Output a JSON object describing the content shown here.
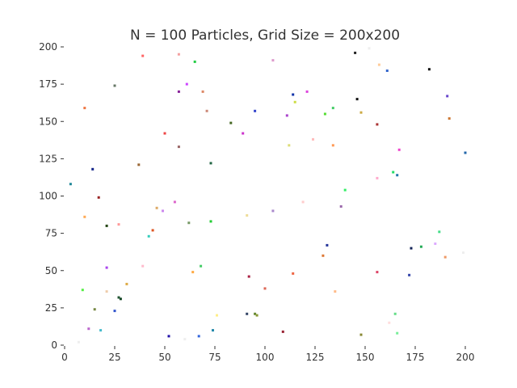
{
  "chart_data": {
    "type": "scatter",
    "title": "N = 100 Particles, Grid Size = 200x200",
    "xlabel": "",
    "ylabel": "",
    "xlim": [
      0,
      200
    ],
    "ylim": [
      0,
      200
    ],
    "xticks": [
      "0",
      "25",
      "50",
      "75",
      "100",
      "125",
      "150",
      "175",
      "200"
    ],
    "yticks": [
      "0",
      "25",
      "50",
      "75",
      "100",
      "125",
      "150",
      "175",
      "200"
    ],
    "grid": false,
    "legend": "none",
    "points": [
      {
        "x": 145,
        "y": 196,
        "color": "#222222"
      },
      {
        "x": 182,
        "y": 185,
        "color": "#111111"
      },
      {
        "x": 57,
        "y": 195,
        "color": "#f4a0a0"
      },
      {
        "x": 39,
        "y": 194,
        "color": "#ff6666"
      },
      {
        "x": 65,
        "y": 190,
        "color": "#22cc44"
      },
      {
        "x": 104,
        "y": 191,
        "color": "#dd99cc"
      },
      {
        "x": 157,
        "y": 188,
        "color": "#ffcc99"
      },
      {
        "x": 161,
        "y": 184,
        "color": "#3366cc"
      },
      {
        "x": 25,
        "y": 174,
        "color": "#667766"
      },
      {
        "x": 61,
        "y": 175,
        "color": "#cc44ff"
      },
      {
        "x": 69,
        "y": 170,
        "color": "#dd8866"
      },
      {
        "x": 57,
        "y": 170,
        "color": "#882299"
      },
      {
        "x": 114,
        "y": 168,
        "color": "#1133aa"
      },
      {
        "x": 121,
        "y": 170,
        "color": "#dd44dd"
      },
      {
        "x": 191,
        "y": 167,
        "color": "#6644cc"
      },
      {
        "x": 146,
        "y": 165,
        "color": "#111111"
      },
      {
        "x": 115,
        "y": 163,
        "color": "#ccdd44"
      },
      {
        "x": 10,
        "y": 159,
        "color": "#ee7744"
      },
      {
        "x": 134,
        "y": 159,
        "color": "#44cc66"
      },
      {
        "x": 71,
        "y": 157,
        "color": "#cc8877"
      },
      {
        "x": 95,
        "y": 157,
        "color": "#3344cc"
      },
      {
        "x": 148,
        "y": 156,
        "color": "#ccaa44"
      },
      {
        "x": 130,
        "y": 155,
        "color": "#55dd33"
      },
      {
        "x": 111,
        "y": 154,
        "color": "#aa44cc"
      },
      {
        "x": 192,
        "y": 152,
        "color": "#cc7733"
      },
      {
        "x": 83,
        "y": 149,
        "color": "#446622"
      },
      {
        "x": 156,
        "y": 148,
        "color": "#aa3333"
      },
      {
        "x": 50,
        "y": 142,
        "color": "#ee4444"
      },
      {
        "x": 89,
        "y": 142,
        "color": "#cc33cc"
      },
      {
        "x": 124,
        "y": 138,
        "color": "#ffbbbb"
      },
      {
        "x": 57,
        "y": 133,
        "color": "#996666"
      },
      {
        "x": 112,
        "y": 134,
        "color": "#dddd77"
      },
      {
        "x": 134,
        "y": 134,
        "color": "#ff9955"
      },
      {
        "x": 167,
        "y": 131,
        "color": "#ee44cc"
      },
      {
        "x": 200,
        "y": 129,
        "color": "#2266aa"
      },
      {
        "x": 73,
        "y": 122,
        "color": "#226644"
      },
      {
        "x": 37,
        "y": 121,
        "color": "#996633"
      },
      {
        "x": 14,
        "y": 118,
        "color": "#112288"
      },
      {
        "x": 164,
        "y": 116,
        "color": "#22dd66"
      },
      {
        "x": 166,
        "y": 114,
        "color": "#2277aa"
      },
      {
        "x": 156,
        "y": 112,
        "color": "#ffaacc"
      },
      {
        "x": 3,
        "y": 108,
        "color": "#228899"
      },
      {
        "x": 140,
        "y": 104,
        "color": "#33ee66"
      },
      {
        "x": 17,
        "y": 99,
        "color": "#992222"
      },
      {
        "x": 55,
        "y": 96,
        "color": "#dd66cc"
      },
      {
        "x": 119,
        "y": 96,
        "color": "#ffcccc"
      },
      {
        "x": 138,
        "y": 93,
        "color": "#9966aa"
      },
      {
        "x": 46,
        "y": 92,
        "color": "#ddaa66"
      },
      {
        "x": 49,
        "y": 90,
        "color": "#cc88ee"
      },
      {
        "x": 104,
        "y": 90,
        "color": "#aa88cc"
      },
      {
        "x": 10,
        "y": 86,
        "color": "#ffaa55"
      },
      {
        "x": 91,
        "y": 87,
        "color": "#eedd99"
      },
      {
        "x": 62,
        "y": 82,
        "color": "#779966"
      },
      {
        "x": 73,
        "y": 83,
        "color": "#22cc33"
      },
      {
        "x": 27,
        "y": 81,
        "color": "#ff9999"
      },
      {
        "x": 21,
        "y": 80,
        "color": "#224411"
      },
      {
        "x": 44,
        "y": 77,
        "color": "#dd5522"
      },
      {
        "x": 187,
        "y": 76,
        "color": "#44dd88"
      },
      {
        "x": 42,
        "y": 73,
        "color": "#33ccbb"
      },
      {
        "x": 185,
        "y": 68,
        "color": "#ddaaff"
      },
      {
        "x": 131,
        "y": 67,
        "color": "#223399"
      },
      {
        "x": 173,
        "y": 65,
        "color": "#112255"
      },
      {
        "x": 178,
        "y": 66,
        "color": "#22aa55"
      },
      {
        "x": 129,
        "y": 60,
        "color": "#dd7733"
      },
      {
        "x": 190,
        "y": 59,
        "color": "#ee9966"
      },
      {
        "x": 21,
        "y": 52,
        "color": "#aa44ee"
      },
      {
        "x": 39,
        "y": 53,
        "color": "#ffbbcc"
      },
      {
        "x": 68,
        "y": 53,
        "color": "#44cc66"
      },
      {
        "x": 64,
        "y": 49,
        "color": "#ffaa44"
      },
      {
        "x": 114,
        "y": 48,
        "color": "#ee6644"
      },
      {
        "x": 156,
        "y": 49,
        "color": "#dd4466"
      },
      {
        "x": 92,
        "y": 46,
        "color": "#aa2244"
      },
      {
        "x": 172,
        "y": 47,
        "color": "#3344aa"
      },
      {
        "x": 31,
        "y": 41,
        "color": "#ddaa44"
      },
      {
        "x": 100,
        "y": 38,
        "color": "#dd6655"
      },
      {
        "x": 9,
        "y": 37,
        "color": "#55ee44"
      },
      {
        "x": 21,
        "y": 36,
        "color": "#eeccaa"
      },
      {
        "x": 135,
        "y": 36,
        "color": "#ffbb88"
      },
      {
        "x": 27,
        "y": 32,
        "color": "#225533"
      },
      {
        "x": 28,
        "y": 31,
        "color": "#114422"
      },
      {
        "x": 15,
        "y": 24,
        "color": "#778844"
      },
      {
        "x": 25,
        "y": 23,
        "color": "#3355cc"
      },
      {
        "x": 91,
        "y": 21,
        "color": "#334466"
      },
      {
        "x": 95,
        "y": 21,
        "color": "#668833"
      },
      {
        "x": 96,
        "y": 20,
        "color": "#889933"
      },
      {
        "x": 76,
        "y": 20,
        "color": "#ffee88"
      },
      {
        "x": 165,
        "y": 21,
        "color": "#66dd88"
      },
      {
        "x": 162,
        "y": 15,
        "color": "#ffdddd"
      },
      {
        "x": 12,
        "y": 11,
        "color": "#bb66cc"
      },
      {
        "x": 18,
        "y": 10,
        "color": "#44bbcc"
      },
      {
        "x": 74,
        "y": 10,
        "color": "#2288aa"
      },
      {
        "x": 109,
        "y": 9,
        "color": "#992233"
      },
      {
        "x": 166,
        "y": 8,
        "color": "#77ee99"
      },
      {
        "x": 52,
        "y": 6,
        "color": "#2211aa"
      },
      {
        "x": 67,
        "y": 6,
        "color": "#3366dd"
      },
      {
        "x": 148,
        "y": 7,
        "color": "#888833"
      },
      {
        "x": 60,
        "y": 4,
        "color": "#eeeeee"
      },
      {
        "x": 152,
        "y": 199,
        "color": "#eeeeee"
      },
      {
        "x": 7,
        "y": 2,
        "color": "#eeeeee"
      },
      {
        "x": 199,
        "y": 62,
        "color": "#eeeeee"
      }
    ]
  }
}
